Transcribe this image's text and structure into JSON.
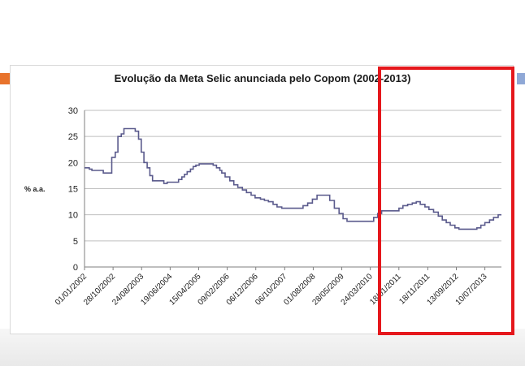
{
  "chart_data": {
    "type": "line",
    "title": "Evolução da Meta Selic anunciada pelo Copom (2002-2013)",
    "ylabel": "% a.a.",
    "xlabel": "",
    "ylim": [
      0,
      30
    ],
    "yticks": [
      0,
      5,
      10,
      15,
      20,
      25,
      30
    ],
    "grid": "horizontal",
    "legend": "none",
    "x_tick_labels": [
      "01/01/2002",
      "28/10/2002",
      "24/08/2003",
      "19/06/2004",
      "15/04/2005",
      "09/02/2006",
      "06/12/2006",
      "06/10/2007",
      "01/08/2008",
      "28/05/2009",
      "24/03/2010",
      "18/01/2011",
      "18/11/2011",
      "13/09/2012",
      "10/07/2013"
    ],
    "series": [
      {
        "color": "#5a5a8c",
        "x": [
          "2002-01-01",
          "2002-02-20",
          "2002-03-20",
          "2002-07-17",
          "2002-10-14",
          "2002-11-20",
          "2002-12-18",
          "2003-01-22",
          "2003-02-19",
          "2003-06-18",
          "2003-07-23",
          "2003-08-20",
          "2003-09-17",
          "2003-10-22",
          "2003-11-19",
          "2003-12-17",
          "2004-04-14",
          "2004-05-19",
          "2004-09-15",
          "2004-10-20",
          "2004-11-17",
          "2004-12-15",
          "2005-01-19",
          "2005-02-16",
          "2005-03-16",
          "2005-04-20",
          "2005-05-18",
          "2005-09-14",
          "2005-10-19",
          "2005-11-23",
          "2005-12-14",
          "2006-01-18",
          "2006-03-08",
          "2006-04-19",
          "2006-05-31",
          "2006-07-19",
          "2006-08-30",
          "2006-10-18",
          "2006-11-29",
          "2007-01-24",
          "2007-03-07",
          "2007-04-18",
          "2007-06-06",
          "2007-07-18",
          "2007-09-05",
          "2008-04-16",
          "2008-06-04",
          "2008-07-23",
          "2008-09-10",
          "2009-01-21",
          "2009-03-11",
          "2009-04-29",
          "2009-06-10",
          "2009-07-22",
          "2010-04-28",
          "2010-06-09",
          "2010-07-21",
          "2010-09-01",
          "2011-01-19",
          "2011-03-02",
          "2011-04-20",
          "2011-06-08",
          "2011-07-20",
          "2011-08-31",
          "2011-10-19",
          "2011-11-30",
          "2012-01-18",
          "2012-03-07",
          "2012-04-18",
          "2012-05-30",
          "2012-07-11",
          "2012-08-29",
          "2012-10-10",
          "2013-04-17",
          "2013-05-29",
          "2013-07-10",
          "2013-08-28",
          "2013-10-09",
          "2013-11-27"
        ],
        "values": [
          19.0,
          18.75,
          18.5,
          18.0,
          21.0,
          22.0,
          25.0,
          25.5,
          26.5,
          26.0,
          24.5,
          22.0,
          20.0,
          19.0,
          17.5,
          16.5,
          16.0,
          16.25,
          16.75,
          17.25,
          17.75,
          18.25,
          18.75,
          19.25,
          19.5,
          19.75,
          19.75,
          19.5,
          19.0,
          18.5,
          18.0,
          17.25,
          16.5,
          15.75,
          15.25,
          14.75,
          14.25,
          13.75,
          13.25,
          13.0,
          12.75,
          12.5,
          12.0,
          11.5,
          11.25,
          11.75,
          12.25,
          13.0,
          13.75,
          12.75,
          11.25,
          10.25,
          9.25,
          8.75,
          9.5,
          10.25,
          10.75,
          10.75,
          11.25,
          11.75,
          12.0,
          12.25,
          12.5,
          12.0,
          11.5,
          11.0,
          10.5,
          9.75,
          9.0,
          8.5,
          8.0,
          7.5,
          7.25,
          7.5,
          8.0,
          8.5,
          9.0,
          9.5,
          10.0
        ]
      }
    ]
  },
  "annotation": {
    "highlight_color": "#e5171c"
  }
}
